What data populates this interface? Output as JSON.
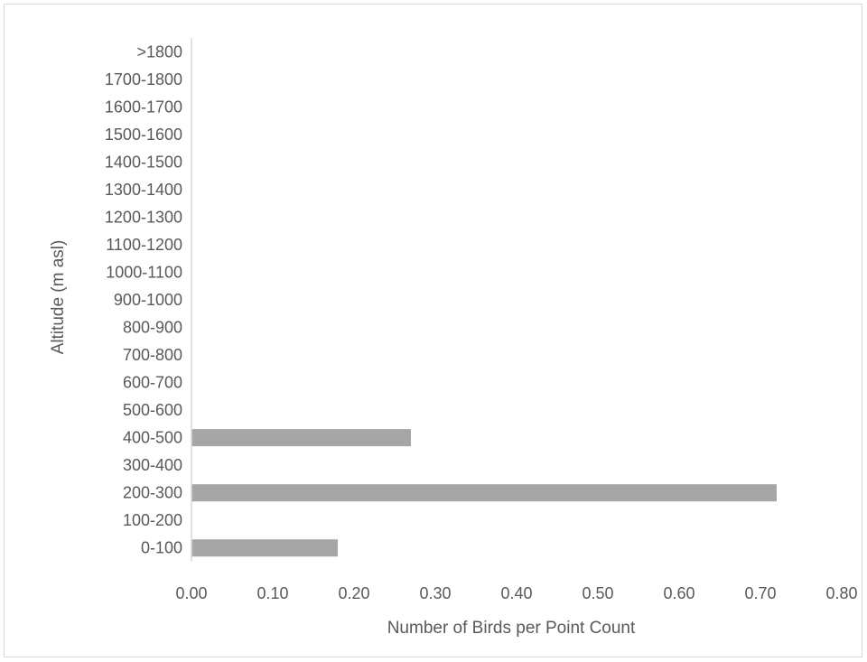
{
  "chart_data": {
    "type": "bar",
    "orientation": "horizontal",
    "title": "",
    "xlabel": "Number of Birds per Point Count",
    "ylabel": "Altitude (m asl)",
    "categories": [
      "0-100",
      "100-200",
      "200-300",
      "300-400",
      "400-500",
      "500-600",
      "600-700",
      "700-800",
      "800-900",
      "900-1000",
      "1000-1100",
      "1100-1200",
      "1200-1300",
      "1300-1400",
      "1400-1500",
      "1500-1600",
      "1600-1700",
      "1700-1800",
      ">1800"
    ],
    "values": [
      0.18,
      0,
      0.72,
      0,
      0.27,
      0,
      0,
      0,
      0,
      0,
      0,
      0,
      0,
      0,
      0,
      0,
      0,
      0,
      0
    ],
    "xlim": [
      0,
      0.8
    ],
    "xticks": [
      "0.00",
      "0.10",
      "0.20",
      "0.30",
      "0.40",
      "0.50",
      "0.60",
      "0.70",
      "0.80"
    ],
    "grid": false,
    "legend": "none",
    "bar_color": "#a6a6a6",
    "axis_color": "#d9d9d9",
    "text_color": "#595959"
  }
}
